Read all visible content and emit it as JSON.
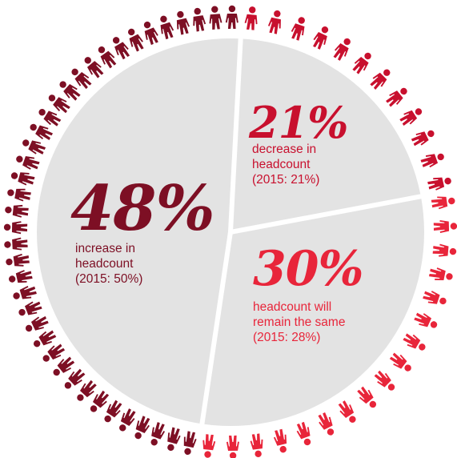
{
  "chart_data": {
    "type": "pie",
    "categories": [
      "decrease in headcount",
      "headcount will remain the same",
      "increase in headcount"
    ],
    "values": [
      21,
      30,
      48
    ],
    "unit": "%",
    "slices": [
      {
        "key": "decrease",
        "value": 21,
        "value_label": "21%",
        "description": [
          "decrease in",
          "headcount",
          "(2015: 21%)"
        ],
        "previous_year": 21,
        "color": "#c8102e"
      },
      {
        "key": "same",
        "value": 30,
        "value_label": "30%",
        "description": [
          "headcount will",
          "remain the same",
          "(2015: 28%)"
        ],
        "previous_year": 28,
        "color": "#e8253a"
      },
      {
        "key": "increase",
        "value": 48,
        "value_label": "48%",
        "description": [
          "increase in",
          "headcount",
          "(2015: 50%)"
        ],
        "previous_year": 50,
        "color": "#7d0f24"
      }
    ],
    "figure_counts": {
      "decrease": 12,
      "same": 17,
      "increase": 39
    }
  },
  "colors": {
    "pie_fill": "#e3e3e3",
    "divider": "#ffffff"
  },
  "icons": {
    "figure": "person-icon"
  }
}
